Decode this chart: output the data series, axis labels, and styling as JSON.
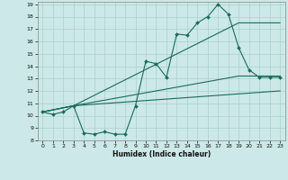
{
  "title": "",
  "xlabel": "Humidex (Indice chaleur)",
  "ylabel": "",
  "xlim": [
    -0.5,
    23.5
  ],
  "ylim": [
    8,
    19.2
  ],
  "yticks": [
    8,
    9,
    10,
    11,
    12,
    13,
    14,
    15,
    16,
    17,
    18,
    19
  ],
  "xticks": [
    0,
    1,
    2,
    3,
    4,
    5,
    6,
    7,
    8,
    9,
    10,
    11,
    12,
    13,
    14,
    15,
    16,
    17,
    18,
    19,
    20,
    21,
    22,
    23
  ],
  "bg_color": "#cce8e8",
  "grid_color": "#aad0d0",
  "line_color": "#1a6b5a",
  "series1_x": [
    0,
    1,
    2,
    3,
    4,
    5,
    6,
    7,
    8,
    9,
    10,
    11,
    12,
    13,
    14,
    15,
    16,
    17,
    18,
    19,
    20,
    21,
    22,
    23
  ],
  "series1_y": [
    10.3,
    10.1,
    10.3,
    10.8,
    8.6,
    8.5,
    8.7,
    8.5,
    8.5,
    10.8,
    14.4,
    14.2,
    13.1,
    16.6,
    16.5,
    17.5,
    18.0,
    19.0,
    18.2,
    15.5,
    13.7,
    13.1,
    13.1,
    13.1
  ],
  "series2_x": [
    0,
    3,
    19,
    23
  ],
  "series2_y": [
    10.3,
    10.8,
    13.2,
    13.2
  ],
  "series3_x": [
    0,
    3,
    19,
    23
  ],
  "series3_y": [
    10.3,
    10.8,
    17.5,
    17.5
  ],
  "series4_x": [
    0,
    3,
    23
  ],
  "series4_y": [
    10.3,
    10.8,
    12.0
  ]
}
